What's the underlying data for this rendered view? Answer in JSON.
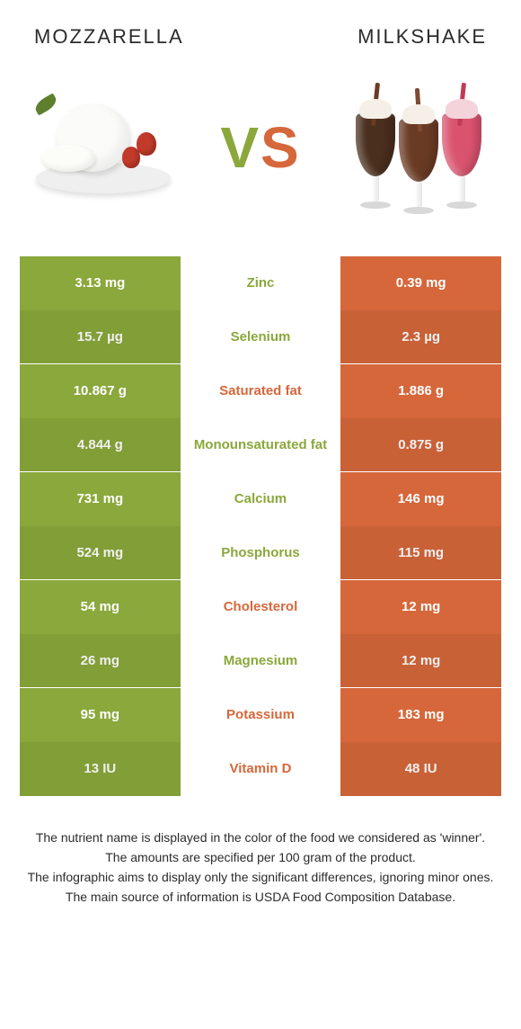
{
  "colors": {
    "left": "#8aa83b",
    "right": "#d6673b",
    "left_text": "#ffffff",
    "right_text": "#ffffff",
    "mid_bg": "#ffffff"
  },
  "header": {
    "left_title": "Mozzarella",
    "right_title": "Milkshake"
  },
  "vs": {
    "v": "V",
    "s": "S"
  },
  "rows": [
    {
      "nutrient": "Zinc",
      "left": "3.13 mg",
      "right": "0.39 mg",
      "winner": "left"
    },
    {
      "nutrient": "Selenium",
      "left": "15.7 µg",
      "right": "2.3 µg",
      "winner": "left"
    },
    {
      "nutrient": "Saturated fat",
      "left": "10.867 g",
      "right": "1.886 g",
      "winner": "right"
    },
    {
      "nutrient": "Monounsaturated fat",
      "left": "4.844 g",
      "right": "0.875 g",
      "winner": "left"
    },
    {
      "nutrient": "Calcium",
      "left": "731 mg",
      "right": "146 mg",
      "winner": "left"
    },
    {
      "nutrient": "Phosphorus",
      "left": "524 mg",
      "right": "115 mg",
      "winner": "left"
    },
    {
      "nutrient": "Cholesterol",
      "left": "54 mg",
      "right": "12 mg",
      "winner": "right"
    },
    {
      "nutrient": "Magnesium",
      "left": "26 mg",
      "right": "12 mg",
      "winner": "left"
    },
    {
      "nutrient": "Potassium",
      "left": "95 mg",
      "right": "183 mg",
      "winner": "right"
    },
    {
      "nutrient": "Vitamin D",
      "left": "13 IU",
      "right": "48 IU",
      "winner": "right"
    }
  ],
  "footer": {
    "l1": "The nutrient name is displayed in the color of the food we considered as 'winner'.",
    "l2": "The amounts are specified per 100 gram of the product.",
    "l3": "The infographic aims to display only the significant differences, ignoring minor ones.",
    "l4": "The main source of information is USDA Food Composition Database."
  }
}
